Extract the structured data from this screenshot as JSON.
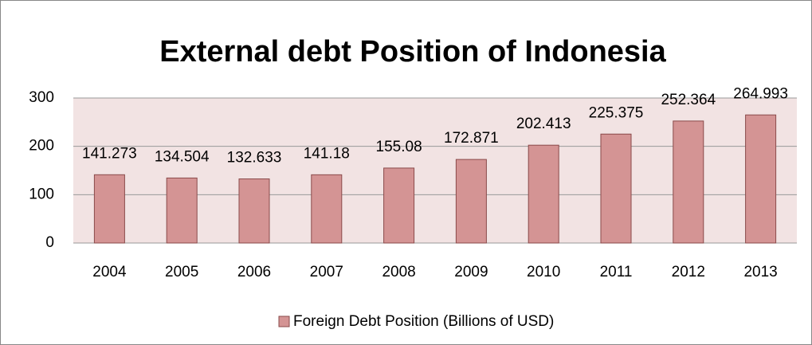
{
  "chart_data": {
    "type": "bar",
    "title": "External debt Position of Indonesia",
    "categories": [
      "2004",
      "2005",
      "2006",
      "2007",
      "2008",
      "2009",
      "2010",
      "2011",
      "2012",
      "2013"
    ],
    "series": [
      {
        "name": "Foreign Debt Position (Billions of USD)",
        "color": "#d49494",
        "values": [
          141.273,
          134.504,
          132.633,
          141.18,
          155.08,
          172.871,
          202.413,
          225.375,
          252.364,
          264.993
        ]
      }
    ],
    "ylim": [
      0,
      300
    ],
    "yticks": [
      0,
      100,
      200,
      300
    ],
    "grid": true,
    "legend": "bottom"
  }
}
